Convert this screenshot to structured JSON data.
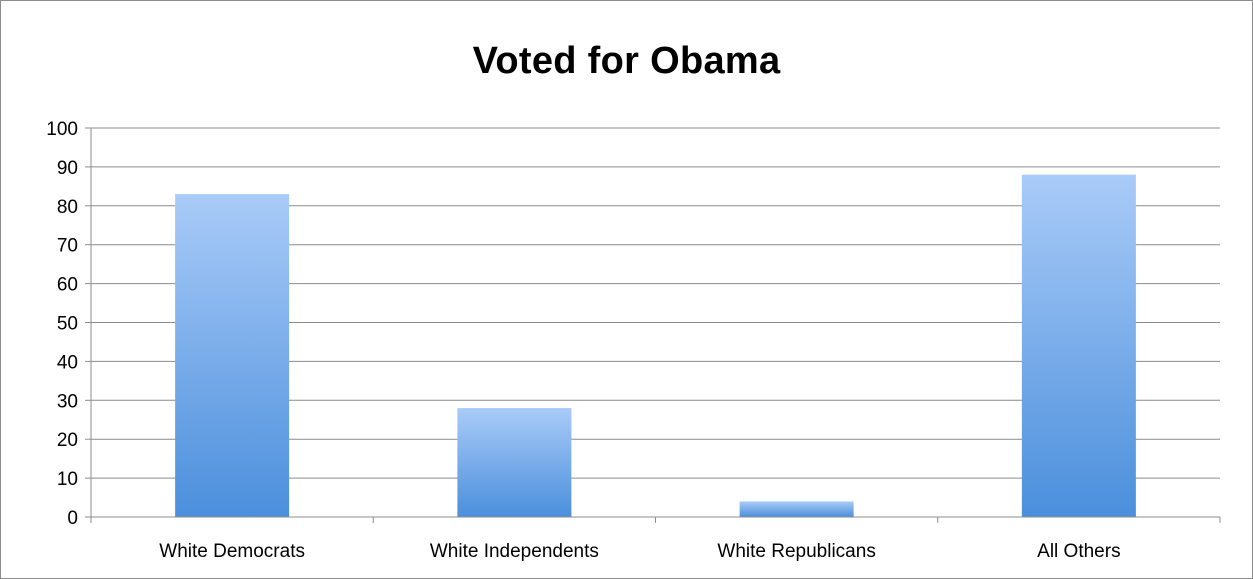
{
  "chart_data": {
    "type": "bar",
    "title": "Voted for Obama",
    "categories": [
      "White Democrats",
      "White Independents",
      "White Republicans",
      "All Others"
    ],
    "values": [
      83,
      28,
      4,
      88
    ],
    "xlabel": "",
    "ylabel": "",
    "ylim": [
      0,
      100
    ],
    "yticks": [
      0,
      10,
      20,
      30,
      40,
      50,
      60,
      70,
      80,
      90,
      100
    ],
    "grid": true,
    "legend": "none",
    "colors": {
      "bar_top": "#a9cbf8",
      "bar_bottom": "#4b8fdc",
      "gridline": "#8c8c8c",
      "axis": "#8c8c8c"
    }
  }
}
